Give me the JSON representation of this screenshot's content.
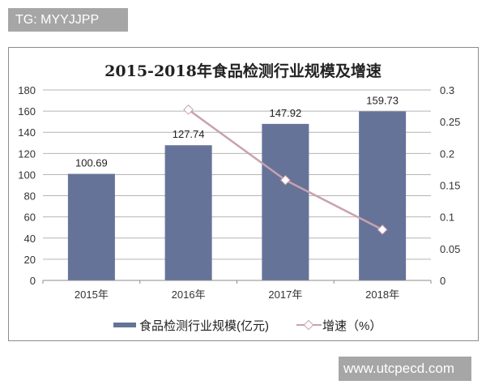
{
  "watermarks": {
    "top_left": "TG: MYYJJPP",
    "bottom_right": "www.utcpecd.com"
  },
  "colors": {
    "bar": "#667399",
    "line": "#c8a2ad",
    "grid": "#b4b4b4",
    "watermark_bg": "#a6a6a6"
  },
  "chart_data": {
    "type": "bar",
    "title": "2015-2018年食品检测行业规模及增速",
    "categories": [
      "2015年",
      "2016年",
      "2017年",
      "2018年"
    ],
    "series": [
      {
        "name": "食品检测行业规模(亿元)",
        "type": "bar",
        "axis": "left",
        "values": [
          100.69,
          127.74,
          147.92,
          159.73
        ],
        "data_labels": [
          "100.69",
          "127.74",
          "147.92",
          "159.73"
        ]
      },
      {
        "name": "增速（%）",
        "type": "line",
        "axis": "right",
        "values": [
          null,
          0.269,
          0.158,
          0.08
        ]
      }
    ],
    "left_axis": {
      "ylim": [
        0,
        180
      ],
      "ticks": [
        "0",
        "20",
        "40",
        "60",
        "80",
        "100",
        "120",
        "140",
        "160",
        "180"
      ]
    },
    "right_axis": {
      "ylim": [
        0,
        0.3
      ],
      "ticks": [
        "0",
        "0.05",
        "0.1",
        "0.15",
        "0.2",
        "0.25",
        "0.3"
      ]
    },
    "xlabel": "",
    "ylabel": "",
    "grid": true,
    "legend_position": "bottom",
    "legend": [
      "食品检测行业规模(亿元)",
      "增速（%）"
    ]
  }
}
